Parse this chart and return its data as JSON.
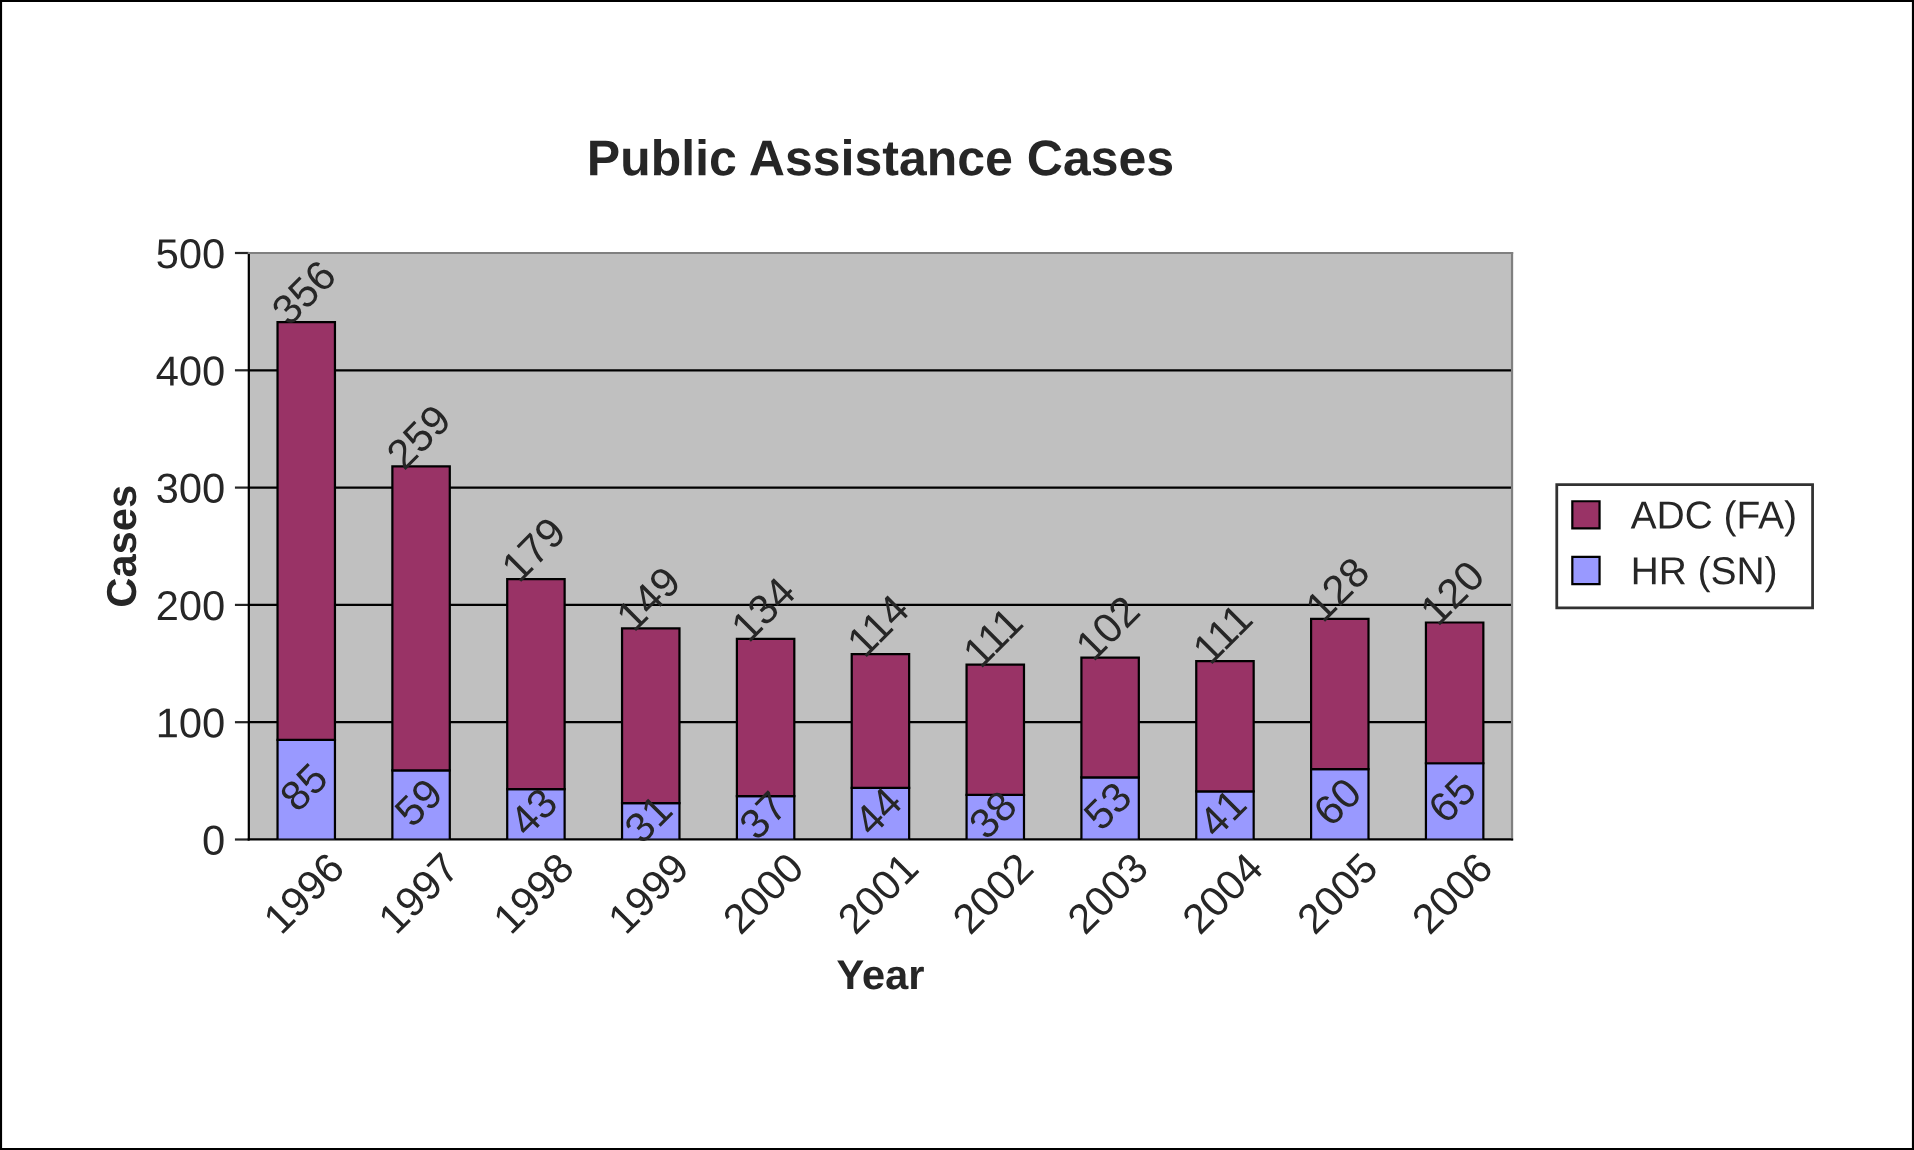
{
  "chart_data": {
    "type": "bar",
    "title": "Public Assistance Cases",
    "xlabel": "Year",
    "ylabel": "Cases",
    "categories": [
      "1996",
      "1997",
      "1998",
      "1999",
      "2000",
      "2001",
      "2002",
      "2003",
      "2004",
      "2005",
      "2006"
    ],
    "series": [
      {
        "name": "HR (SN)",
        "color": "#9999ff",
        "values": [
          85,
          59,
          43,
          31,
          37,
          44,
          38,
          53,
          41,
          60,
          65
        ]
      },
      {
        "name": "ADC (FA)",
        "color": "#993366",
        "values": [
          356,
          259,
          179,
          149,
          134,
          114,
          111,
          102,
          111,
          128,
          120
        ]
      }
    ],
    "stacked": true,
    "data_labels": true,
    "ylim": [
      0,
      500
    ],
    "yticks": [
      0,
      100,
      200,
      300,
      400,
      500
    ],
    "grid": "y",
    "legend": "right"
  }
}
